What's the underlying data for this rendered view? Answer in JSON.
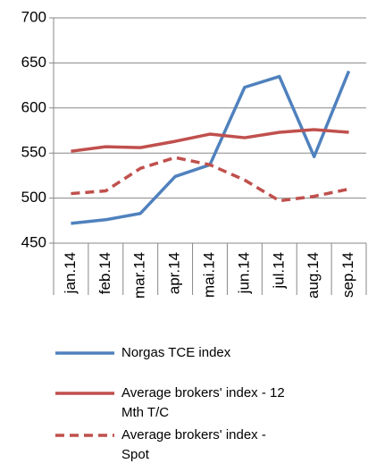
{
  "chart_data": {
    "type": "line",
    "categories": [
      "jan.14",
      "feb.14",
      "mar.14",
      "apr.14",
      "mai.14",
      "jun.14",
      "jul.14",
      "aug.14",
      "sep.14"
    ],
    "series": [
      {
        "name": "Norgas TCE index",
        "color": "#4f81bd",
        "dash": "solid",
        "values": [
          472,
          476,
          483,
          524,
          537,
          623,
          635,
          546,
          641
        ]
      },
      {
        "name": "Average brokers' index - 12 Mth T/C",
        "color": "#c0504d",
        "dash": "solid",
        "values": [
          552,
          557,
          556,
          563,
          571,
          567,
          573,
          576,
          573
        ]
      },
      {
        "name": "Average brokers' index - Spot",
        "color": "#c0504d",
        "dash": "dashed",
        "values": [
          505,
          508,
          533,
          545,
          537,
          520,
          497,
          502,
          510
        ]
      }
    ],
    "ylim": [
      450,
      700
    ],
    "yticks": [
      450,
      500,
      550,
      600,
      650,
      700
    ],
    "grid": true,
    "legend": "bottom"
  }
}
